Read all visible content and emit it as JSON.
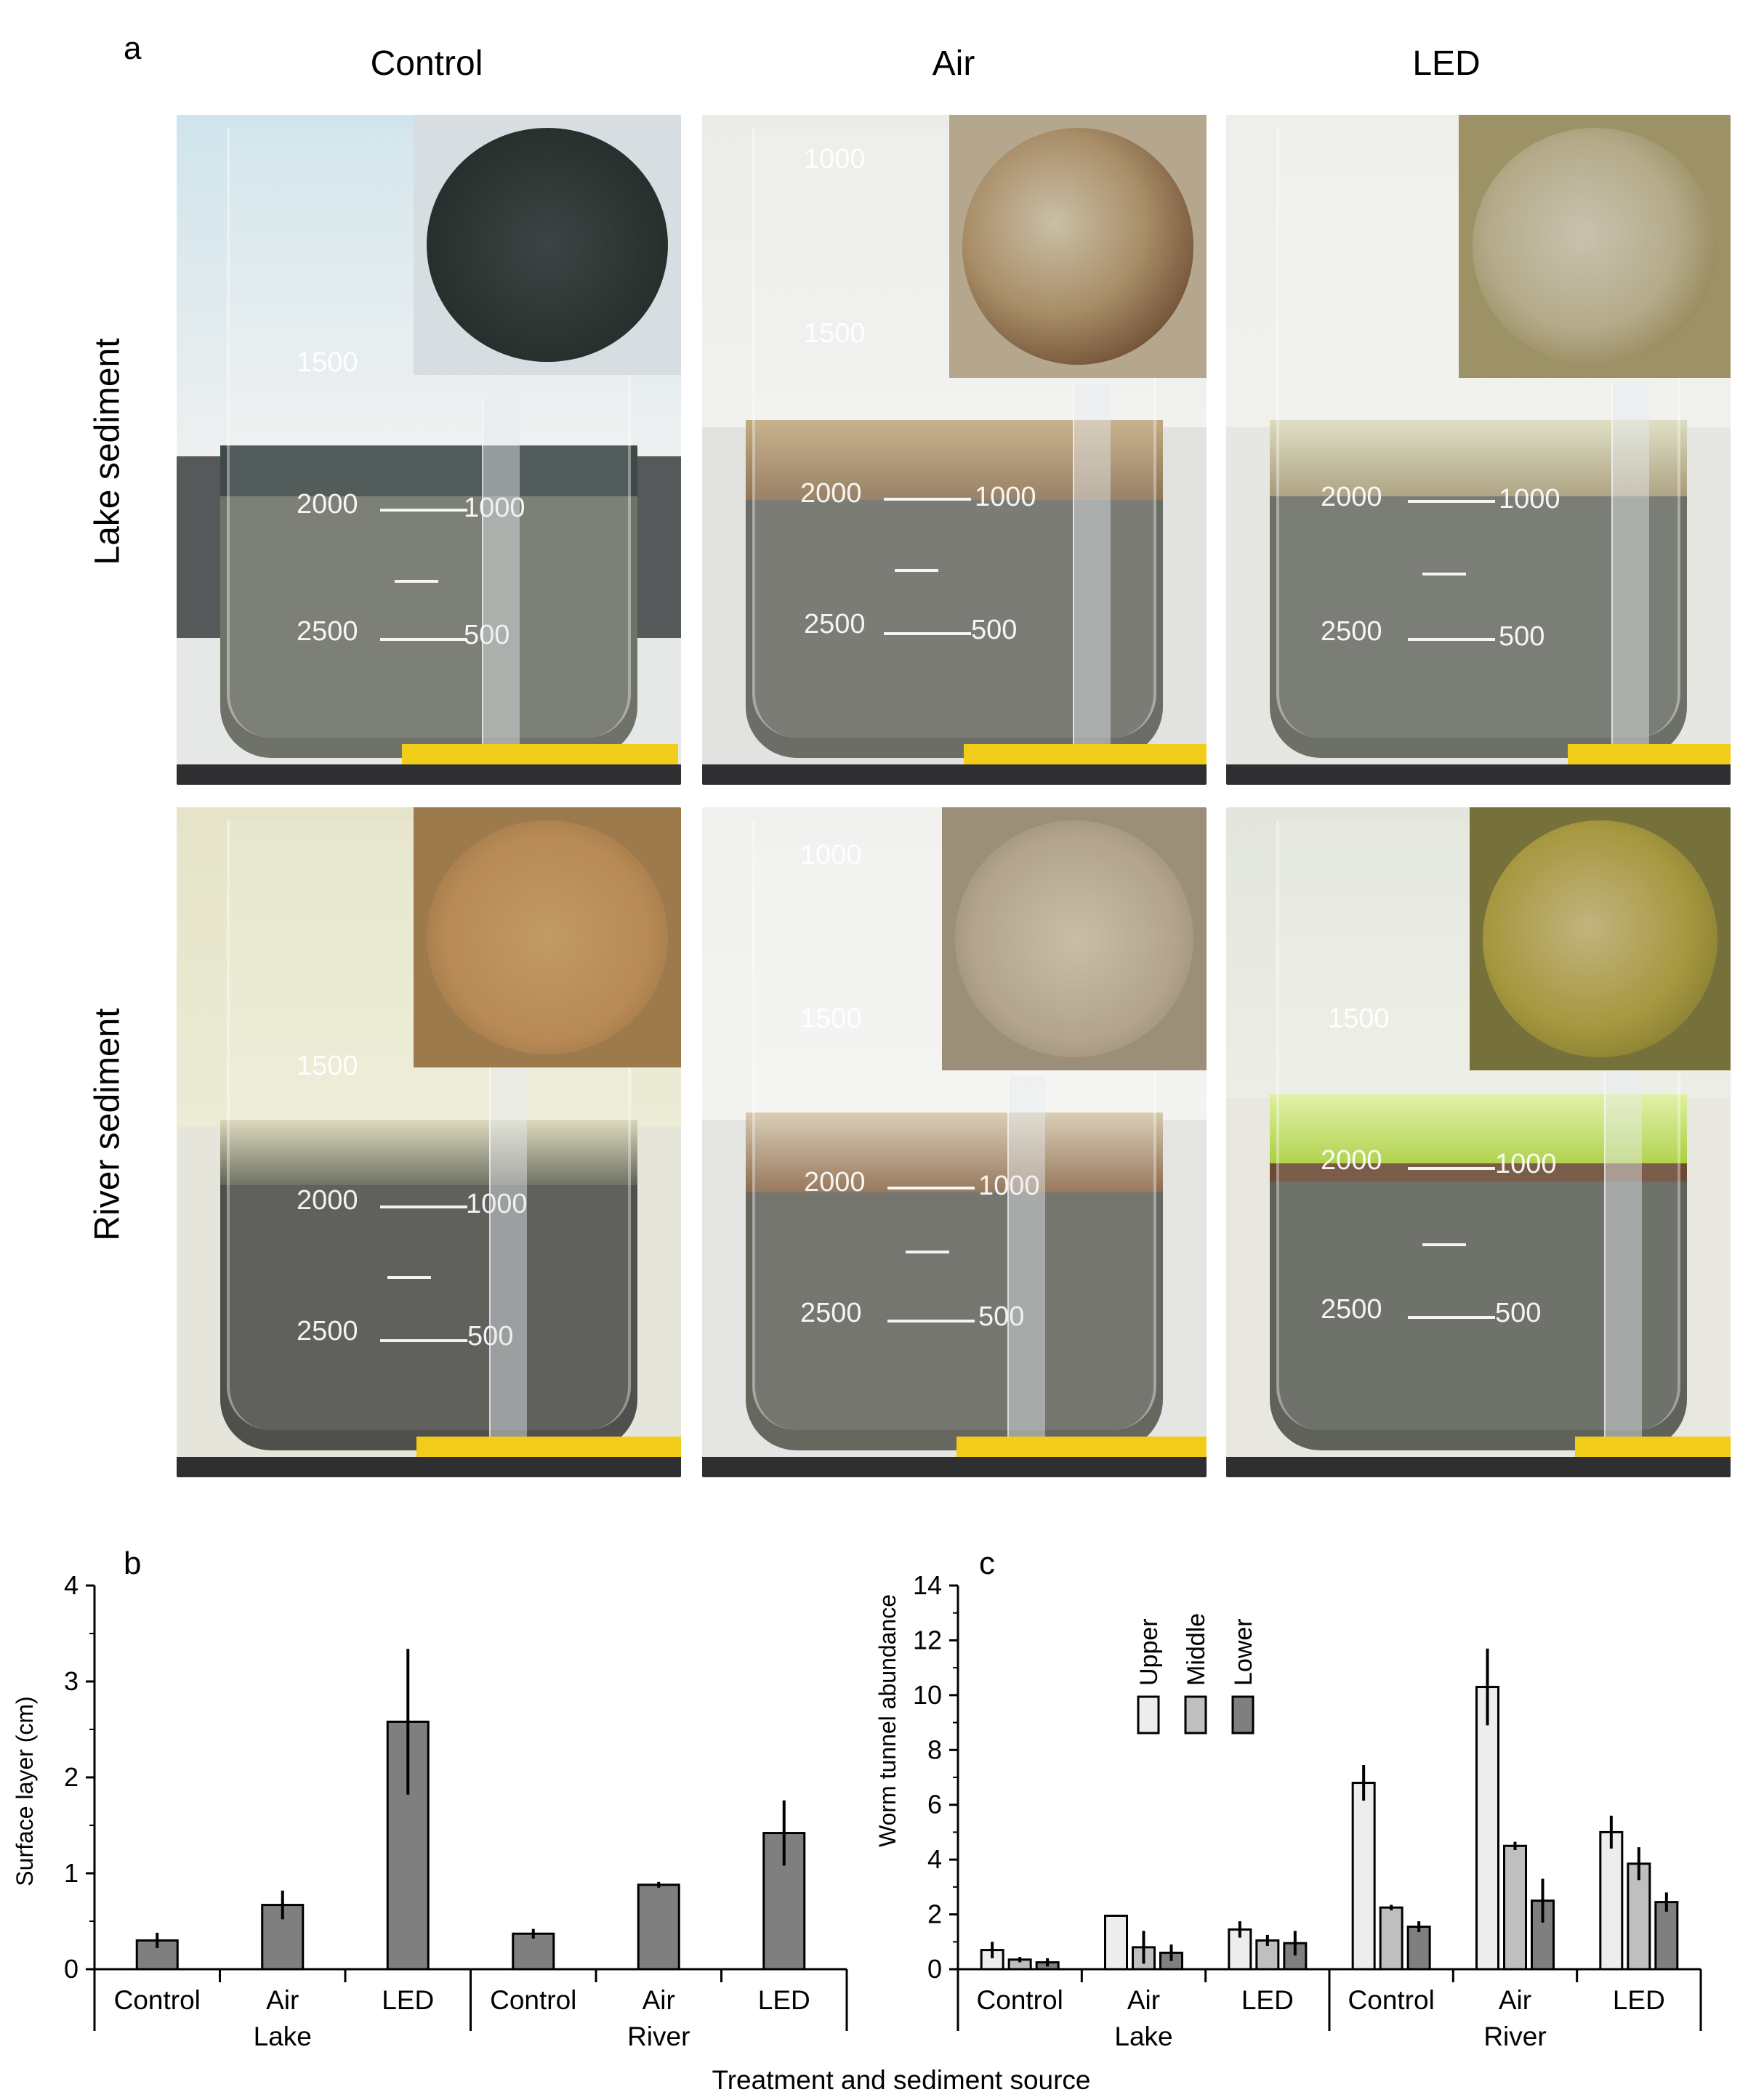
{
  "panel_a": {
    "letter": "a",
    "columns": [
      "Control",
      "Air",
      "LED"
    ],
    "rows": [
      "Lake sediment",
      "River sediment"
    ],
    "grad_labels": {
      "g1000": "1000",
      "g1500": "1500",
      "g2000": "2000",
      "g2500": "2500",
      "g500": "500",
      "g1000r": "1000"
    },
    "colors": {
      "lake_control_inset": "#2b3331",
      "lake_air_inset": "#9c8262",
      "lake_led_inset": "#a89d73",
      "river_control_inset": "#b88a55",
      "river_air_inset": "#b3a48c",
      "river_led_inset": "#8e8a3e",
      "sediment_gray": "#6f7268",
      "sediment_dark": "#4f504b",
      "water_light": "#e9ebe6",
      "surface_control": "#3f4a48",
      "surface_air": "#b49a70",
      "surface_led": "#c8c9a8",
      "river_surface_led": "#a9cf3c",
      "river_water_control": "#e5e4c8"
    }
  },
  "chart_data": [
    {
      "panel": "b",
      "type": "bar",
      "title": "",
      "ylabel": "Surface layer (cm)",
      "xlabel": "Treatment and sediment source",
      "categories": [
        "Control",
        "Air",
        "LED",
        "Control",
        "Air",
        "LED"
      ],
      "groups": [
        "Lake",
        "River"
      ],
      "ylim": [
        0,
        4
      ],
      "yticks": [
        "0",
        "1",
        "2",
        "3",
        "4"
      ],
      "values": [
        0.3,
        0.67,
        2.58,
        0.37,
        0.88,
        1.42
      ],
      "errors": [
        0.08,
        0.15,
        0.76,
        0.05,
        0.03,
        0.34
      ],
      "color": "#7f7f7f"
    },
    {
      "panel": "c",
      "type": "bar",
      "title": "",
      "ylabel": "Worm tunnel abundance",
      "xlabel": "Treatment and sediment source",
      "categories": [
        "Control",
        "Air",
        "LED",
        "Control",
        "Air",
        "LED"
      ],
      "groups": [
        "Lake",
        "River"
      ],
      "ylim": [
        0,
        14
      ],
      "yticks": [
        "0",
        "2",
        "4",
        "6",
        "8",
        "10",
        "12",
        "14"
      ],
      "series": [
        {
          "name": "Upper",
          "color": "#ededed",
          "values": [
            0.7,
            1.95,
            1.45,
            6.8,
            10.3,
            5.0
          ],
          "errors": [
            0.3,
            0.0,
            0.3,
            0.65,
            1.4,
            0.6
          ]
        },
        {
          "name": "Middle",
          "color": "#bfbfbf",
          "values": [
            0.35,
            0.8,
            1.05,
            2.25,
            4.5,
            3.85
          ],
          "errors": [
            0.1,
            0.6,
            0.2,
            0.1,
            0.15,
            0.6
          ]
        },
        {
          "name": "Lower",
          "color": "#7f7f7f",
          "values": [
            0.25,
            0.6,
            0.95,
            1.55,
            2.5,
            2.45
          ],
          "errors": [
            0.15,
            0.3,
            0.45,
            0.2,
            0.8,
            0.35
          ]
        }
      ],
      "legend": "top-left"
    }
  ]
}
